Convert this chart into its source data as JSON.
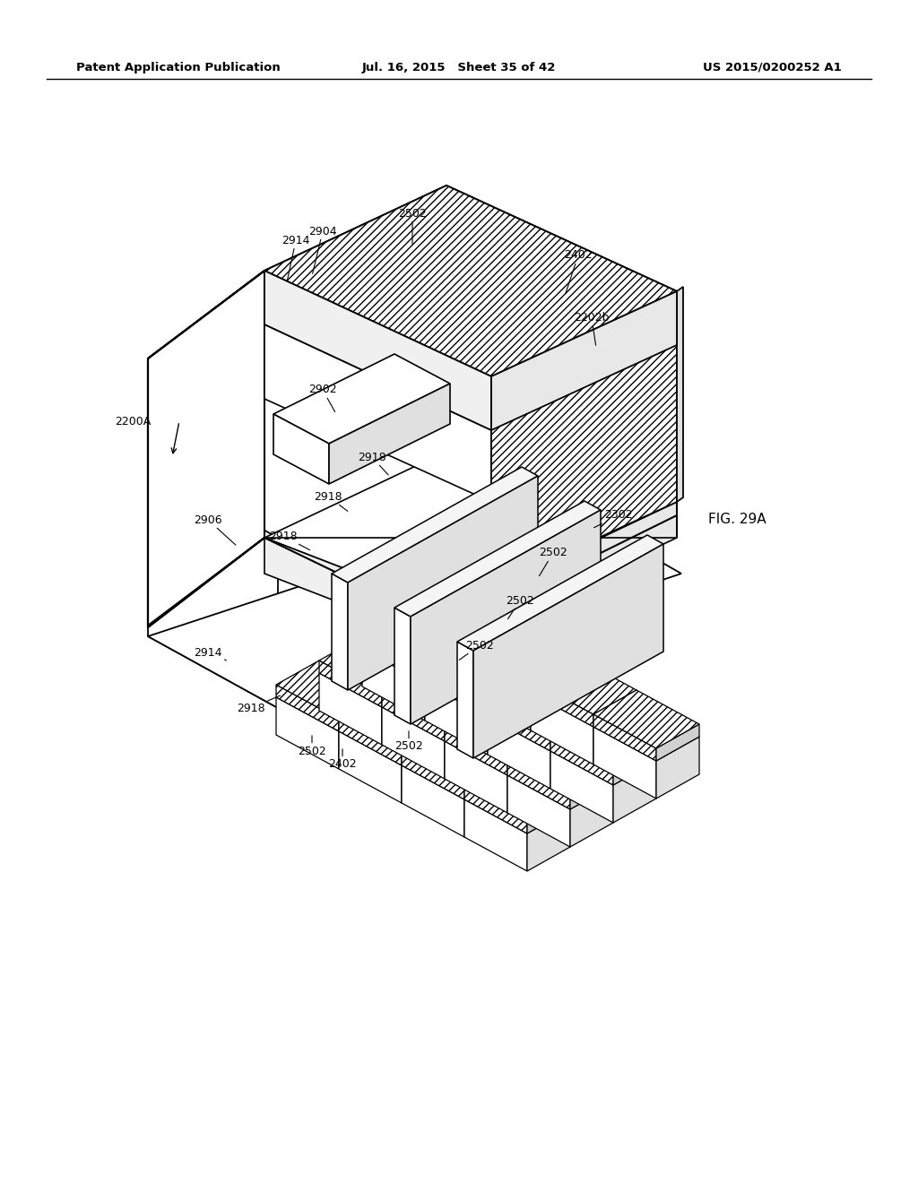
{
  "header_left": "Patent Application Publication",
  "header_center": "Jul. 16, 2015   Sheet 35 of 42",
  "header_right": "US 2015/0200252 A1",
  "fig_label": "FIG. 29A",
  "bg_color": "#ffffff"
}
